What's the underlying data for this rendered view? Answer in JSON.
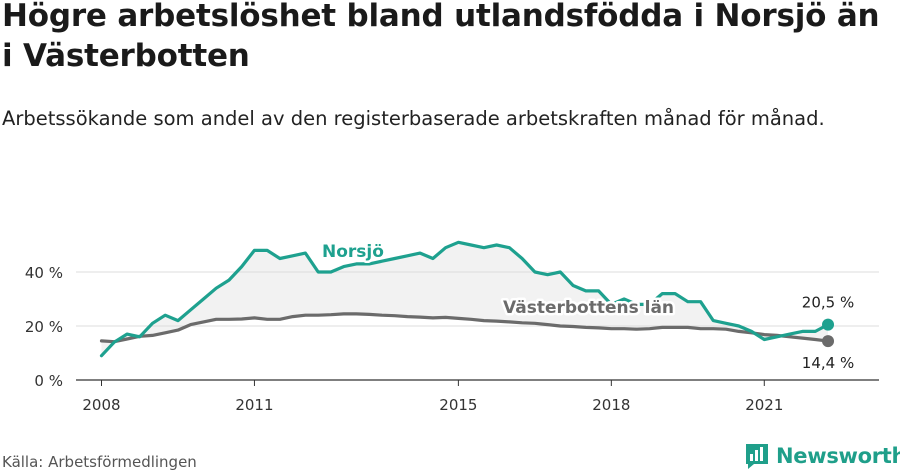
{
  "title": "Högre arbetslöshet bland utlandsfödda i Norsjö än i Västerbotten",
  "subtitle": "Arbetssökande som andel av den registerbaserade arbetskraften månad för månad.",
  "source": "Källa: Arbetsförmedlingen",
  "brand": {
    "name": "Newsworthy",
    "icon": "newsworthy-logo-icon",
    "color": "#1f9f8a"
  },
  "chart_data": {
    "type": "line",
    "x_ticks": [
      "2008",
      "2011",
      "2015",
      "2018",
      "2021"
    ],
    "y_ticks": [
      "0 %",
      "20 %",
      "40 %"
    ],
    "ylim": [
      0,
      60
    ],
    "xlim": [
      2007.5,
      2023.25
    ],
    "grid": true,
    "series": [
      {
        "name": "Norsjö",
        "color": "#1ea18f",
        "end_label": "20,5 %",
        "x": [
          2008.0,
          2008.25,
          2008.5,
          2008.75,
          2009.0,
          2009.25,
          2009.5,
          2009.75,
          2010.0,
          2010.25,
          2010.5,
          2010.75,
          2011.0,
          2011.25,
          2011.5,
          2011.75,
          2012.0,
          2012.25,
          2012.5,
          2012.75,
          2013.0,
          2013.25,
          2013.5,
          2013.75,
          2014.0,
          2014.25,
          2014.5,
          2014.75,
          2015.0,
          2015.25,
          2015.5,
          2015.75,
          2016.0,
          2016.25,
          2016.5,
          2016.75,
          2017.0,
          2017.25,
          2017.5,
          2017.75,
          2018.0,
          2018.25,
          2018.5,
          2018.75,
          2019.0,
          2019.25,
          2019.5,
          2019.75,
          2020.0,
          2020.25,
          2020.5,
          2020.75,
          2021.0,
          2021.25,
          2021.5,
          2021.75,
          2022.0,
          2022.25
        ],
        "values": [
          9,
          14,
          17,
          16,
          21,
          24,
          22,
          26,
          30,
          34,
          37,
          42,
          48,
          48,
          45,
          46,
          47,
          40,
          40,
          42,
          43,
          43,
          44,
          45,
          46,
          47,
          45,
          49,
          51,
          50,
          49,
          50,
          49,
          45,
          40,
          39,
          40,
          35,
          33,
          33,
          28,
          30,
          28,
          28,
          32,
          32,
          29,
          29,
          22,
          21,
          20,
          18,
          15,
          16,
          17,
          18,
          18,
          20.5
        ]
      },
      {
        "name": "Västerbottens län",
        "color": "#6b6b6b",
        "end_label": "14,4 %",
        "x": [
          2008.0,
          2008.25,
          2008.5,
          2008.75,
          2009.0,
          2009.25,
          2009.5,
          2009.75,
          2010.0,
          2010.25,
          2010.5,
          2010.75,
          2011.0,
          2011.25,
          2011.5,
          2011.75,
          2012.0,
          2012.25,
          2012.5,
          2012.75,
          2013.0,
          2013.25,
          2013.5,
          2013.75,
          2014.0,
          2014.25,
          2014.5,
          2014.75,
          2015.0,
          2015.25,
          2015.5,
          2015.75,
          2016.0,
          2016.25,
          2016.5,
          2016.75,
          2017.0,
          2017.25,
          2017.5,
          2017.75,
          2018.0,
          2018.25,
          2018.5,
          2018.75,
          2019.0,
          2019.25,
          2019.5,
          2019.75,
          2020.0,
          2020.25,
          2020.5,
          2020.75,
          2021.0,
          2021.25,
          2021.5,
          2021.75,
          2022.0,
          2022.25
        ],
        "values": [
          14.5,
          14.2,
          15.2,
          16.2,
          16.5,
          17.5,
          18.5,
          20.5,
          21.5,
          22.5,
          22.5,
          22.6,
          23.0,
          22.5,
          22.5,
          23.5,
          24.0,
          24.0,
          24.2,
          24.5,
          24.5,
          24.3,
          24.0,
          23.8,
          23.5,
          23.3,
          23.0,
          23.2,
          22.8,
          22.5,
          22.0,
          21.8,
          21.5,
          21.2,
          21.0,
          20.5,
          20.0,
          19.8,
          19.5,
          19.3,
          19.0,
          19.0,
          18.8,
          19.0,
          19.5,
          19.5,
          19.5,
          19.0,
          19.0,
          18.8,
          18.0,
          17.5,
          16.8,
          16.5,
          16.0,
          15.5,
          15.0,
          14.4
        ]
      }
    ]
  }
}
